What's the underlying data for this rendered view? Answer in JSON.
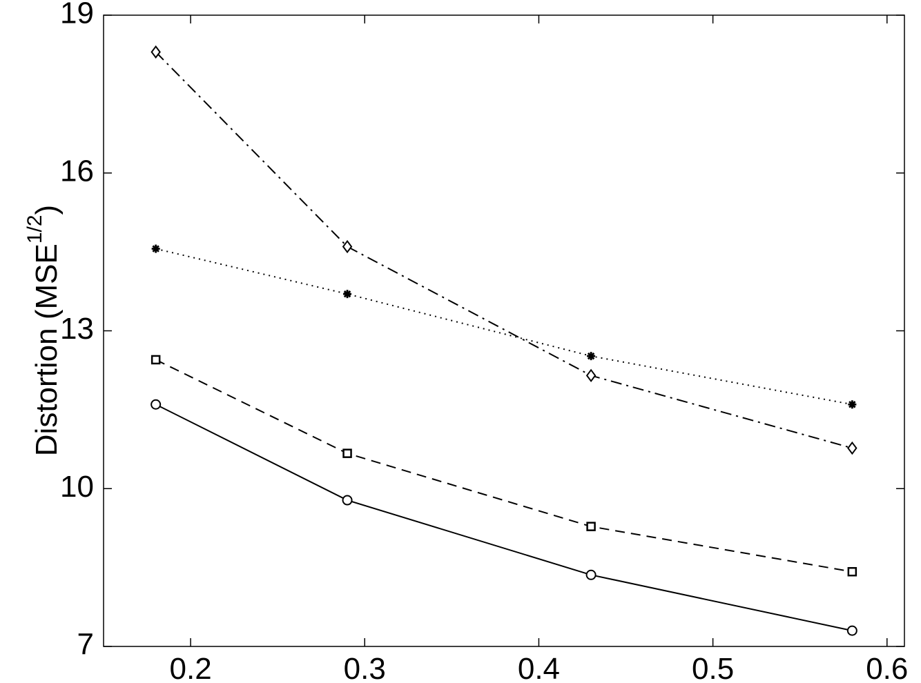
{
  "chart_data": {
    "type": "line",
    "xlabel": "",
    "ylabel": {
      "prefix": "Distortion (MSE",
      "superscript": "1/2",
      "suffix": ")"
    },
    "xlim": [
      0.15,
      0.61
    ],
    "ylim": [
      7,
      19
    ],
    "xticks": [
      "0.2",
      "0.3",
      "0.4",
      "0.5",
      "0.6"
    ],
    "yticks": [
      "7",
      "10",
      "13",
      "16",
      "19"
    ],
    "grid": false,
    "legend": "none",
    "x": [
      0.18,
      0.29,
      0.43,
      0.58
    ],
    "series": [
      {
        "values": [
          11.6,
          9.78,
          8.36,
          7.3
        ],
        "line_style": "solid",
        "marker": "circle",
        "color": "#000000"
      },
      {
        "values": [
          12.45,
          10.67,
          9.28,
          8.42
        ],
        "line_style": "dashed",
        "marker": "square",
        "color": "#000000"
      },
      {
        "values": [
          14.56,
          13.7,
          12.52,
          11.6
        ],
        "line_style": "dotted",
        "marker": "asterisk",
        "color": "#000000"
      },
      {
        "values": [
          18.3,
          14.6,
          12.15,
          10.77
        ],
        "line_style": "dashdot",
        "marker": "diamond",
        "color": "#000000"
      }
    ]
  }
}
